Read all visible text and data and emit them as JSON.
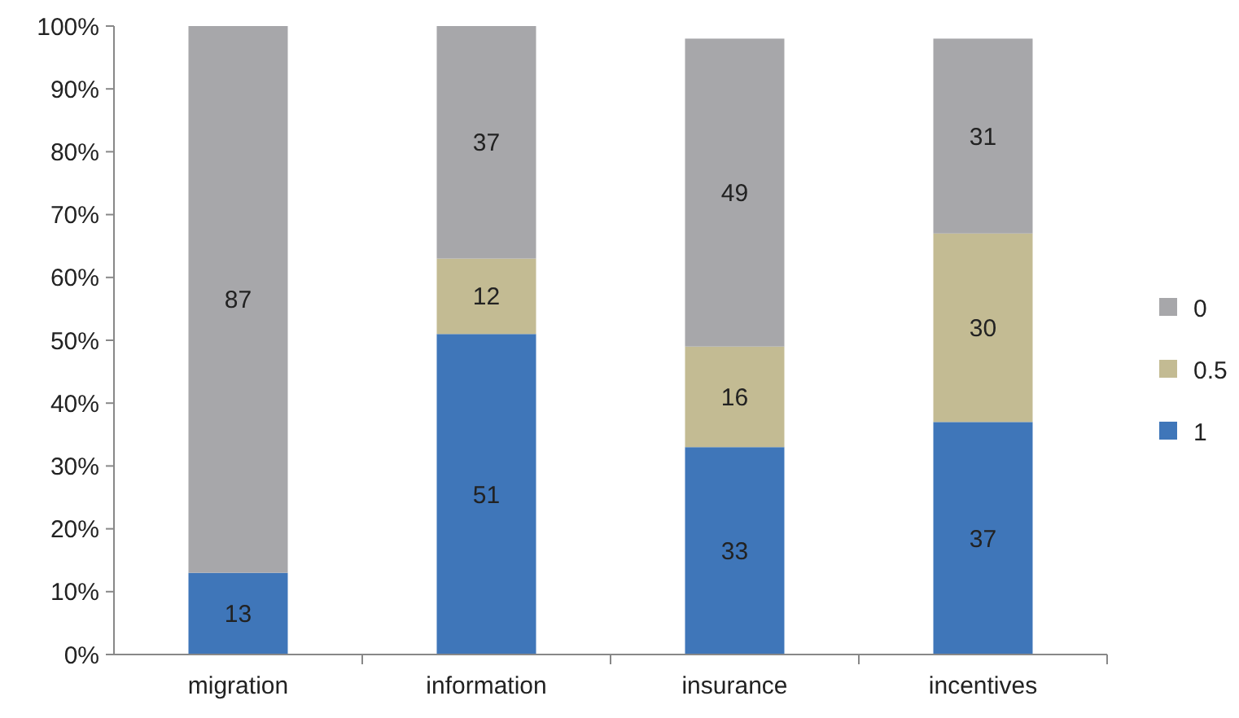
{
  "chart_data": {
    "type": "bar",
    "stacked": true,
    "categories": [
      "migration",
      "information",
      "insurance",
      "incentives"
    ],
    "series": [
      {
        "name": "1",
        "color": "#3f76b9",
        "values": [
          13,
          51,
          33,
          37
        ]
      },
      {
        "name": "0.5",
        "color": "#c3bb93",
        "values": [
          null,
          12,
          16,
          30
        ]
      },
      {
        "name": "0",
        "color": "#a7a7aa",
        "values": [
          87,
          37,
          49,
          31
        ]
      }
    ],
    "ylim": [
      0,
      100
    ],
    "yticks": [
      {
        "value": 0,
        "label": "0%"
      },
      {
        "value": 10,
        "label": "10%"
      },
      {
        "value": 20,
        "label": "20%"
      },
      {
        "value": 30,
        "label": "30%"
      },
      {
        "value": 40,
        "label": "40%"
      },
      {
        "value": 50,
        "label": "50%"
      },
      {
        "value": 60,
        "label": "60%"
      },
      {
        "value": 70,
        "label": "70%"
      },
      {
        "value": 80,
        "label": "80%"
      },
      {
        "value": 90,
        "label": "90%"
      },
      {
        "value": 100,
        "label": "100%"
      }
    ],
    "data_labels": true,
    "legend": "right"
  }
}
